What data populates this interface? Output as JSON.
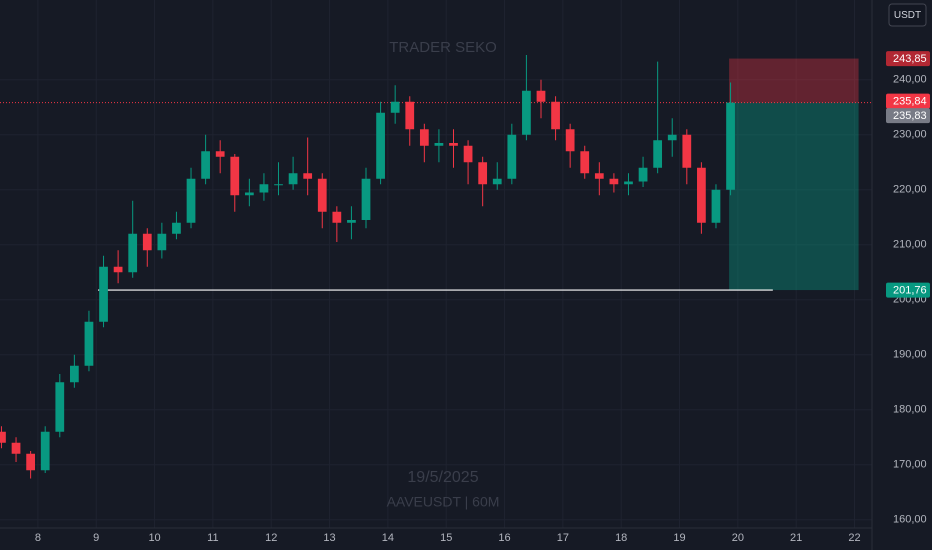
{
  "chart_data": {
    "type": "candlestick",
    "watermark": "TRADER SEKO",
    "date": "19/5/2025",
    "symbol": "AAVEUSDT | 60M",
    "currency": "USDT",
    "x": [
      7.375,
      7.625,
      7.875,
      8.125,
      8.375,
      8.625,
      8.875,
      9.125,
      9.375,
      9.625,
      9.875,
      10.125,
      10.375,
      10.625,
      10.875,
      11.125,
      11.375,
      11.625,
      11.875,
      12.125,
      12.375,
      12.625,
      12.875,
      13.125,
      13.375,
      13.625,
      13.875,
      14.125,
      14.375,
      14.625,
      14.875,
      15.125,
      15.375,
      15.625,
      15.875,
      16.125,
      16.375,
      16.625,
      16.875,
      17.125,
      17.375,
      17.625,
      17.875,
      18.125,
      18.375,
      18.625,
      18.875,
      19.125,
      19.375,
      19.625,
      19.875
    ],
    "open": [
      176,
      174,
      172,
      169,
      176,
      185,
      188,
      196,
      206,
      205,
      212,
      209,
      212,
      214,
      222,
      227,
      226,
      219,
      219.5,
      221,
      221,
      223,
      222,
      216,
      214,
      214.5,
      222,
      234,
      236,
      231,
      228,
      228.5,
      228,
      225,
      221,
      222,
      230,
      238,
      236,
      231,
      227,
      223,
      222,
      221,
      221.5,
      224,
      229,
      230,
      224,
      214,
      220
    ],
    "high": [
      177,
      175,
      172.5,
      177,
      186.5,
      190,
      198,
      208,
      209,
      218,
      213,
      214,
      216,
      224,
      230,
      229,
      226.5,
      222,
      223,
      225,
      226,
      229.5,
      223,
      217,
      217,
      224,
      236,
      239,
      237,
      232,
      231,
      231,
      229,
      226,
      225,
      232,
      244.5,
      240,
      237,
      232,
      228,
      225,
      223,
      223,
      226,
      243.3,
      233,
      231,
      225,
      221,
      239.5
    ],
    "low": [
      173,
      170.5,
      167.5,
      168.5,
      175,
      184,
      187,
      195,
      203,
      204,
      206,
      207.5,
      211,
      213,
      221,
      223,
      216,
      217,
      218,
      219,
      220,
      219,
      213,
      210.5,
      211,
      213,
      221,
      232,
      228,
      225,
      225,
      224,
      221,
      217,
      220,
      221,
      229,
      233,
      229,
      224,
      222,
      219,
      219.5,
      219,
      220.5,
      223,
      226,
      221,
      212,
      213,
      219
    ],
    "close": [
      174,
      172,
      169,
      176,
      185,
      188,
      196,
      206,
      205,
      212,
      209,
      212,
      214,
      222,
      227,
      226,
      219,
      219.5,
      221,
      221,
      223,
      222,
      216,
      214,
      214.5,
      222,
      234,
      236,
      231,
      228,
      228.5,
      228,
      225,
      221,
      222,
      230,
      238,
      236,
      231,
      227,
      223,
      222,
      221,
      221.5,
      224,
      229,
      230,
      224,
      214,
      220,
      235.84
    ],
    "up_color": "#089981",
    "down_color": "#f23645",
    "xlim": [
      7.35,
      22.3
    ],
    "xticks": [
      8,
      9,
      10,
      11,
      12,
      13,
      14,
      15,
      16,
      17,
      18,
      19,
      20,
      21,
      22
    ],
    "ylim": [
      158.5,
      254.5
    ],
    "yticks": [
      {
        "value": 160,
        "label": "160,00"
      },
      {
        "value": 170,
        "label": "170,00"
      },
      {
        "value": 180,
        "label": "180,00"
      },
      {
        "value": 190,
        "label": "190,00"
      },
      {
        "value": 200,
        "label": "200,00"
      },
      {
        "value": 210,
        "label": "210,00"
      },
      {
        "value": 220,
        "label": "220,00"
      },
      {
        "value": 230,
        "label": "230,00"
      },
      {
        "value": 240,
        "label": "240,00"
      }
    ],
    "grid": true,
    "position": {
      "x": [
        19.85,
        22.07
      ],
      "stop": {
        "value": 243.85,
        "label": "243,85"
      },
      "entry": {
        "value": 235.84,
        "label": "235,84"
      },
      "target": {
        "value": 201.76,
        "label": "201,76"
      }
    },
    "last_price": {
      "value": 235.83,
      "label": "235,83"
    },
    "support_line": {
      "value": 201.76,
      "x": [
        9.03,
        20.6
      ]
    }
  }
}
